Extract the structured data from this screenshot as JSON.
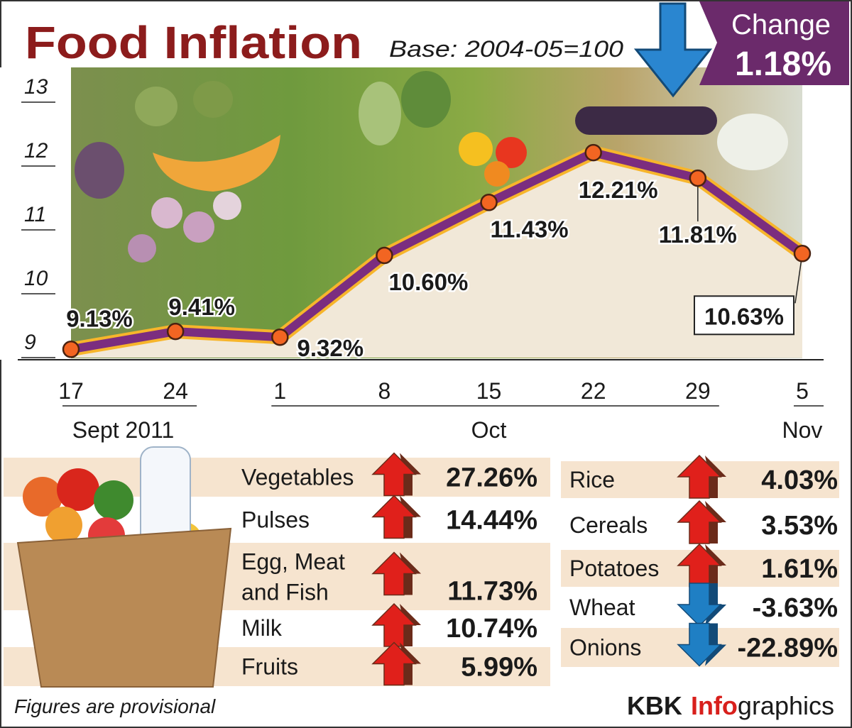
{
  "chart_data": {
    "type": "line",
    "title": "Food Inflation",
    "subtitle": "Base: 2004-05=100",
    "categories": [
      "17",
      "24",
      "1",
      "8",
      "15",
      "22",
      "29",
      "5"
    ],
    "months": [
      "Sept 2011",
      "Sept 2011",
      "Oct",
      "Oct",
      "Oct",
      "Oct",
      "Oct",
      "Nov"
    ],
    "values": [
      9.13,
      9.41,
      9.32,
      10.6,
      11.43,
      12.21,
      11.81,
      10.63
    ],
    "value_labels": [
      "9.13%",
      "9.41%",
      "9.32%",
      "10.60%",
      "11.43%",
      "12.21%",
      "11.81%",
      "10.63%"
    ],
    "ylim": [
      9,
      13
    ],
    "yticks": [
      9,
      10,
      11,
      12,
      13
    ],
    "color": "#7b2d7f",
    "edge_color": "#f7b52b",
    "marker_color": "#f26522"
  },
  "change": {
    "label": "Change",
    "value": "1.18%"
  },
  "tables": [
    {
      "rows": [
        {
          "name": "Vegetables",
          "value": 27.26,
          "value_label": "27.26%"
        },
        {
          "name": "Pulses",
          "value": 14.44,
          "value_label": "14.44%"
        },
        {
          "name": "Egg, Meat and Fish",
          "value": 11.73,
          "value_label": "11.73%"
        },
        {
          "name": "Milk",
          "value": 10.74,
          "value_label": "10.74%"
        },
        {
          "name": "Fruits",
          "value": 5.99,
          "value_label": "5.99%"
        }
      ]
    },
    {
      "rows": [
        {
          "name": "Rice",
          "value": 4.03,
          "value_label": "4.03%"
        },
        {
          "name": "Cereals",
          "value": 3.53,
          "value_label": "3.53%"
        },
        {
          "name": "Potatoes",
          "value": 1.61,
          "value_label": "1.61%"
        },
        {
          "name": "Wheat",
          "value": -3.63,
          "value_label": "-3.63%"
        },
        {
          "name": "Onions",
          "value": -22.89,
          "value_label": "-22.89%"
        }
      ]
    }
  ],
  "footer": {
    "note": "Figures are provisional",
    "credit": [
      "KBK",
      "Info",
      "graphics"
    ]
  }
}
